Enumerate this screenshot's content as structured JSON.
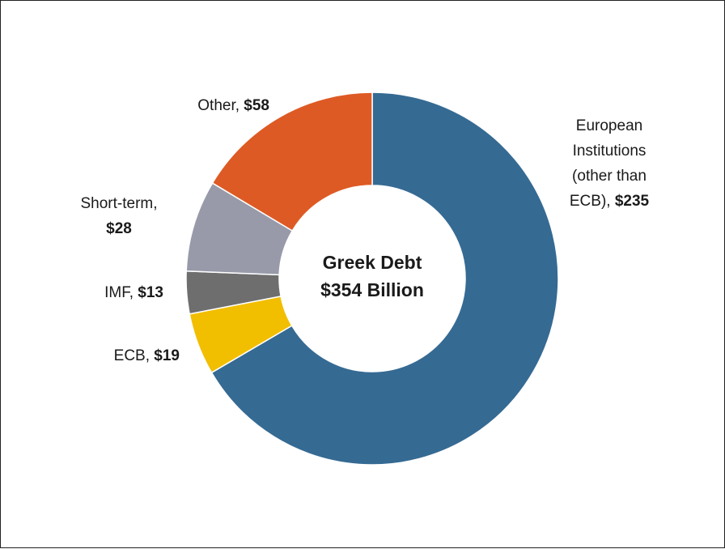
{
  "chart_data": {
    "type": "pie",
    "donut": true,
    "center_label": [
      "Greek Debt",
      "$354 Billion"
    ],
    "categories": [
      "European Institutions (other than ECB)",
      "ECB",
      "IMF",
      "Short-term",
      "Other"
    ],
    "values": [
      235,
      19,
      13,
      28,
      58
    ],
    "value_labels": [
      "$235",
      "$19",
      "$13",
      "$28",
      "$58"
    ],
    "label_lines": [
      [
        "European",
        "Institutions",
        "(other than",
        "ECB),"
      ],
      [
        "ECB,"
      ],
      [
        "IMF,"
      ],
      [
        "Short-term,"
      ],
      [
        "Other,"
      ]
    ],
    "colors": [
      "#356A93",
      "#F2BE00",
      "#6E6E6E",
      "#989AAA",
      "#DE5A24"
    ],
    "start": "12 o'clock",
    "direction": "clockwise",
    "legend": "none"
  }
}
